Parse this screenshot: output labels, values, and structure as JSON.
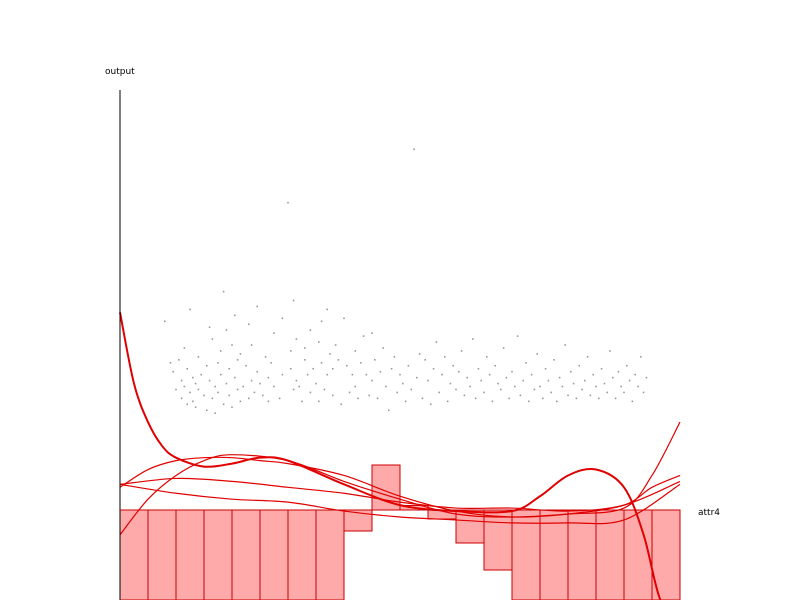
{
  "chart_data": {
    "type": "scatter",
    "xlabel": "attr4",
    "ylabel": "output",
    "colors": {
      "points": "#9a9a9a",
      "curves": "#e00000",
      "bars_fill": "#ffaaaa",
      "bars_stroke": "#cc0000",
      "axes": "#000000"
    },
    "xlim": [
      0,
      20
    ],
    "ylim": [
      -3.2,
      14
    ],
    "grid": false,
    "points": [
      [
        1.6,
        6.2
      ],
      [
        1.8,
        4.8
      ],
      [
        1.9,
        4.5
      ],
      [
        2.0,
        3.9
      ],
      [
        2.1,
        4.9
      ],
      [
        2.2,
        4.2
      ],
      [
        2.2,
        3.6
      ],
      [
        2.3,
        5.3
      ],
      [
        2.3,
        4.0
      ],
      [
        2.4,
        3.4
      ],
      [
        2.4,
        4.6
      ],
      [
        2.5,
        3.8
      ],
      [
        2.5,
        6.6
      ],
      [
        2.6,
        3.5
      ],
      [
        2.6,
        4.3
      ],
      [
        2.7,
        4.1
      ],
      [
        2.7,
        3.3
      ],
      [
        2.8,
        5.0
      ],
      [
        2.8,
        3.9
      ],
      [
        2.9,
        4.4
      ],
      [
        3.0,
        3.7
      ],
      [
        3.1,
        4.7
      ],
      [
        3.1,
        3.2
      ],
      [
        3.2,
        6.0
      ],
      [
        3.2,
        4.2
      ],
      [
        3.3,
        3.6
      ],
      [
        3.3,
        5.6
      ],
      [
        3.4,
        4.0
      ],
      [
        3.4,
        3.1
      ],
      [
        3.5,
        4.8
      ],
      [
        3.5,
        3.8
      ],
      [
        3.6,
        5.2
      ],
      [
        3.6,
        4.4
      ],
      [
        3.7,
        7.2
      ],
      [
        3.7,
        3.4
      ],
      [
        3.8,
        4.1
      ],
      [
        3.8,
        5.9
      ],
      [
        3.9,
        3.7
      ],
      [
        3.9,
        4.6
      ],
      [
        4.0,
        5.4
      ],
      [
        4.0,
        3.3
      ],
      [
        4.1,
        4.3
      ],
      [
        4.1,
        6.4
      ],
      [
        4.2,
        3.9
      ],
      [
        4.2,
        4.9
      ],
      [
        4.3,
        3.5
      ],
      [
        4.3,
        5.1
      ],
      [
        4.4,
        4.0
      ],
      [
        4.5,
        4.7
      ],
      [
        4.6,
        3.6
      ],
      [
        4.6,
        6.1
      ],
      [
        4.7,
        4.2
      ],
      [
        4.7,
        5.4
      ],
      [
        4.8,
        3.8
      ],
      [
        4.9,
        4.5
      ],
      [
        4.9,
        6.7
      ],
      [
        5.0,
        4.1
      ],
      [
        5.1,
        3.7
      ],
      [
        5.2,
        5.0
      ],
      [
        5.3,
        4.3
      ],
      [
        5.3,
        3.5
      ],
      [
        5.4,
        4.8
      ],
      [
        5.5,
        5.8
      ],
      [
        5.5,
        4.0
      ],
      [
        5.7,
        3.6
      ],
      [
        5.8,
        6.3
      ],
      [
        5.8,
        4.4
      ],
      [
        6.0,
        10.2
      ],
      [
        6.1,
        5.2
      ],
      [
        6.1,
        4.6
      ],
      [
        6.2,
        3.9
      ],
      [
        6.2,
        6.9
      ],
      [
        6.3,
        4.2
      ],
      [
        6.3,
        5.6
      ],
      [
        6.4,
        4.0
      ],
      [
        6.5,
        3.5
      ],
      [
        6.6,
        4.9
      ],
      [
        6.6,
        5.3
      ],
      [
        6.7,
        4.4
      ],
      [
        6.8,
        3.8
      ],
      [
        6.8,
        5.9
      ],
      [
        6.9,
        4.6
      ],
      [
        7.0,
        4.1
      ],
      [
        7.1,
        3.5
      ],
      [
        7.1,
        5.5
      ],
      [
        7.2,
        6.2
      ],
      [
        7.2,
        4.8
      ],
      [
        7.3,
        3.9
      ],
      [
        7.4,
        4.4
      ],
      [
        7.4,
        6.6
      ],
      [
        7.5,
        5.1
      ],
      [
        7.6,
        3.7
      ],
      [
        7.6,
        4.6
      ],
      [
        7.7,
        5.4
      ],
      [
        7.8,
        4.9
      ],
      [
        7.9,
        3.4
      ],
      [
        8.0,
        6.3
      ],
      [
        8.1,
        4.7
      ],
      [
        8.2,
        3.8
      ],
      [
        8.3,
        4.4
      ],
      [
        8.4,
        5.2
      ],
      [
        8.4,
        4.0
      ],
      [
        8.5,
        3.6
      ],
      [
        8.6,
        4.8
      ],
      [
        8.7,
        5.7
      ],
      [
        8.8,
        4.4
      ],
      [
        8.9,
        3.7
      ],
      [
        9.0,
        4.2
      ],
      [
        9.0,
        5.8
      ],
      [
        9.1,
        4.9
      ],
      [
        9.2,
        3.6
      ],
      [
        9.3,
        4.5
      ],
      [
        9.4,
        5.3
      ],
      [
        9.5,
        4.0
      ],
      [
        9.6,
        3.2
      ],
      [
        9.7,
        4.6
      ],
      [
        9.8,
        5.0
      ],
      [
        9.9,
        3.8
      ],
      [
        10.0,
        4.4
      ],
      [
        10.1,
        4.1
      ],
      [
        10.2,
        3.5
      ],
      [
        10.3,
        4.7
      ],
      [
        10.4,
        3.9
      ],
      [
        10.5,
        12.0
      ],
      [
        10.6,
        4.3
      ],
      [
        10.7,
        5.1
      ],
      [
        10.8,
        3.6
      ],
      [
        10.9,
        4.9
      ],
      [
        11.0,
        4.2
      ],
      [
        11.1,
        3.4
      ],
      [
        11.2,
        4.6
      ],
      [
        11.3,
        5.5
      ],
      [
        11.4,
        3.8
      ],
      [
        11.5,
        4.4
      ],
      [
        11.6,
        5.0
      ],
      [
        11.7,
        3.5
      ],
      [
        11.8,
        4.1
      ],
      [
        11.9,
        4.7
      ],
      [
        12.0,
        3.9
      ],
      [
        12.1,
        4.5
      ],
      [
        12.2,
        5.2
      ],
      [
        12.3,
        3.7
      ],
      [
        12.4,
        4.3
      ],
      [
        12.5,
        4.0
      ],
      [
        12.6,
        5.6
      ],
      [
        12.7,
        3.6
      ],
      [
        12.8,
        4.6
      ],
      [
        12.9,
        4.2
      ],
      [
        13.0,
        3.8
      ],
      [
        13.1,
        5.0
      ],
      [
        13.2,
        4.4
      ],
      [
        13.3,
        3.5
      ],
      [
        13.4,
        4.7
      ],
      [
        13.5,
        4.1
      ],
      [
        13.6,
        3.9
      ],
      [
        13.7,
        5.3
      ],
      [
        13.8,
        4.3
      ],
      [
        13.9,
        3.6
      ],
      [
        14.0,
        4.5
      ],
      [
        14.1,
        4.0
      ],
      [
        14.2,
        5.7
      ],
      [
        14.3,
        3.7
      ],
      [
        14.4,
        4.2
      ],
      [
        14.5,
        4.8
      ],
      [
        14.6,
        3.5
      ],
      [
        14.7,
        4.4
      ],
      [
        14.8,
        3.9
      ],
      [
        14.9,
        5.1
      ],
      [
        15.0,
        4.0
      ],
      [
        15.1,
        3.6
      ],
      [
        15.2,
        4.6
      ],
      [
        15.3,
        4.2
      ],
      [
        15.4,
        3.8
      ],
      [
        15.5,
        4.9
      ],
      [
        15.6,
        3.5
      ],
      [
        15.7,
        4.3
      ],
      [
        15.8,
        4.0
      ],
      [
        15.9,
        5.4
      ],
      [
        16.0,
        3.7
      ],
      [
        16.1,
        4.5
      ],
      [
        16.2,
        4.1
      ],
      [
        16.3,
        3.6
      ],
      [
        16.4,
        4.7
      ],
      [
        16.5,
        3.9
      ],
      [
        16.6,
        4.2
      ],
      [
        16.7,
        5.0
      ],
      [
        16.8,
        3.7
      ],
      [
        16.9,
        4.4
      ],
      [
        17.0,
        4.0
      ],
      [
        17.1,
        3.6
      ],
      [
        17.2,
        4.6
      ],
      [
        17.3,
        4.1
      ],
      [
        17.4,
        3.8
      ],
      [
        17.5,
        5.2
      ],
      [
        17.6,
        4.3
      ],
      [
        17.7,
        3.6
      ],
      [
        17.8,
        4.5
      ],
      [
        17.9,
        4.0
      ],
      [
        18.0,
        3.8
      ],
      [
        18.1,
        4.7
      ],
      [
        18.2,
        4.2
      ],
      [
        18.3,
        3.5
      ],
      [
        18.4,
        4.4
      ],
      [
        18.5,
        4.0
      ],
      [
        18.6,
        5.0
      ],
      [
        18.7,
        3.8
      ],
      [
        18.8,
        4.3
      ]
    ],
    "curves": [
      {
        "strong": true,
        "x": [
          0,
          0.5,
          1,
          1.5,
          2,
          3,
          4,
          5,
          6,
          8,
          10,
          12,
          14,
          15,
          16,
          17,
          18,
          18.7,
          19.3,
          20
        ],
        "y": [
          6.5,
          4.1,
          2.8,
          2.0,
          1.6,
          1.3,
          1.4,
          1.6,
          1.5,
          0.7,
          0.0,
          -0.2,
          -0.2,
          0.3,
          1.0,
          1.2,
          0.6,
          -1.0,
          -3.2,
          -4.0
        ]
      },
      {
        "strong": false,
        "x": [
          0,
          1,
          2,
          3,
          4,
          6,
          8,
          10,
          12,
          14,
          16,
          18,
          19,
          20
        ],
        "y": [
          -1.0,
          0.2,
          1.0,
          1.5,
          1.7,
          1.5,
          0.8,
          0.2,
          -0.3,
          -0.4,
          -0.3,
          -0.1,
          1.0,
          2.8
        ]
      },
      {
        "strong": false,
        "x": [
          0,
          2,
          4,
          6,
          8,
          10,
          12,
          14,
          16,
          18,
          20
        ],
        "y": [
          0.7,
          0.9,
          0.8,
          0.6,
          0.4,
          0.1,
          -0.1,
          -0.1,
          -0.2,
          0.0,
          0.8
        ]
      },
      {
        "strong": false,
        "x": [
          0,
          2,
          4,
          6,
          8,
          10,
          12,
          14,
          16,
          18,
          20
        ],
        "y": [
          0.7,
          0.4,
          0.2,
          0.1,
          -0.2,
          -0.4,
          -0.5,
          -0.6,
          -0.6,
          -0.5,
          0.7
        ]
      },
      {
        "strong": false,
        "x": [
          0,
          1,
          2,
          3,
          4,
          5,
          6,
          8,
          10,
          12,
          14,
          16,
          18,
          19,
          20
        ],
        "y": [
          0.6,
          1.2,
          1.5,
          1.6,
          1.6,
          1.5,
          1.4,
          1.0,
          0.3,
          -0.2,
          -0.4,
          -0.3,
          0.0,
          0.6,
          1.0
        ]
      }
    ],
    "bars": {
      "baseline": 0,
      "values": [
        -3,
        -3,
        -3,
        -3,
        -3,
        -3,
        -3,
        -3,
        -0.7,
        1.5,
        0.15,
        -0.3,
        -1.1,
        -2.0,
        -3,
        -3,
        -3,
        -3,
        -3,
        -3
      ]
    }
  }
}
